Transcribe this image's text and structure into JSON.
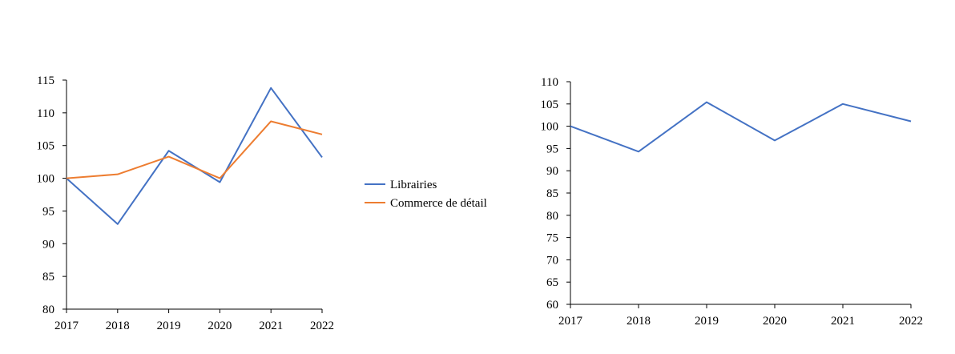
{
  "chart_data": [
    {
      "type": "line",
      "x": [
        "2017",
        "2018",
        "2019",
        "2020",
        "2021",
        "2022"
      ],
      "ylim": [
        80,
        115
      ],
      "yticks": [
        80,
        85,
        90,
        95,
        100,
        105,
        110,
        115
      ],
      "legend_position": "right",
      "series": [
        {
          "name": "Librairies",
          "color": "#4472c4",
          "values": [
            100,
            93,
            104.2,
            99.4,
            113.8,
            103.2
          ]
        },
        {
          "name": "Commerce de détail",
          "color": "#ed7d31",
          "values": [
            100,
            100.6,
            103.3,
            100.0,
            108.7,
            106.7
          ]
        }
      ]
    },
    {
      "type": "line",
      "x": [
        "2017",
        "2018",
        "2019",
        "2020",
        "2021",
        "2022"
      ],
      "ylim": [
        60,
        110
      ],
      "yticks": [
        60,
        65,
        70,
        75,
        80,
        85,
        90,
        95,
        100,
        105,
        110
      ],
      "series": [
        {
          "color": "#4472c4",
          "values": [
            100,
            94.3,
            105.4,
            96.8,
            105,
            101.1
          ]
        }
      ]
    }
  ]
}
